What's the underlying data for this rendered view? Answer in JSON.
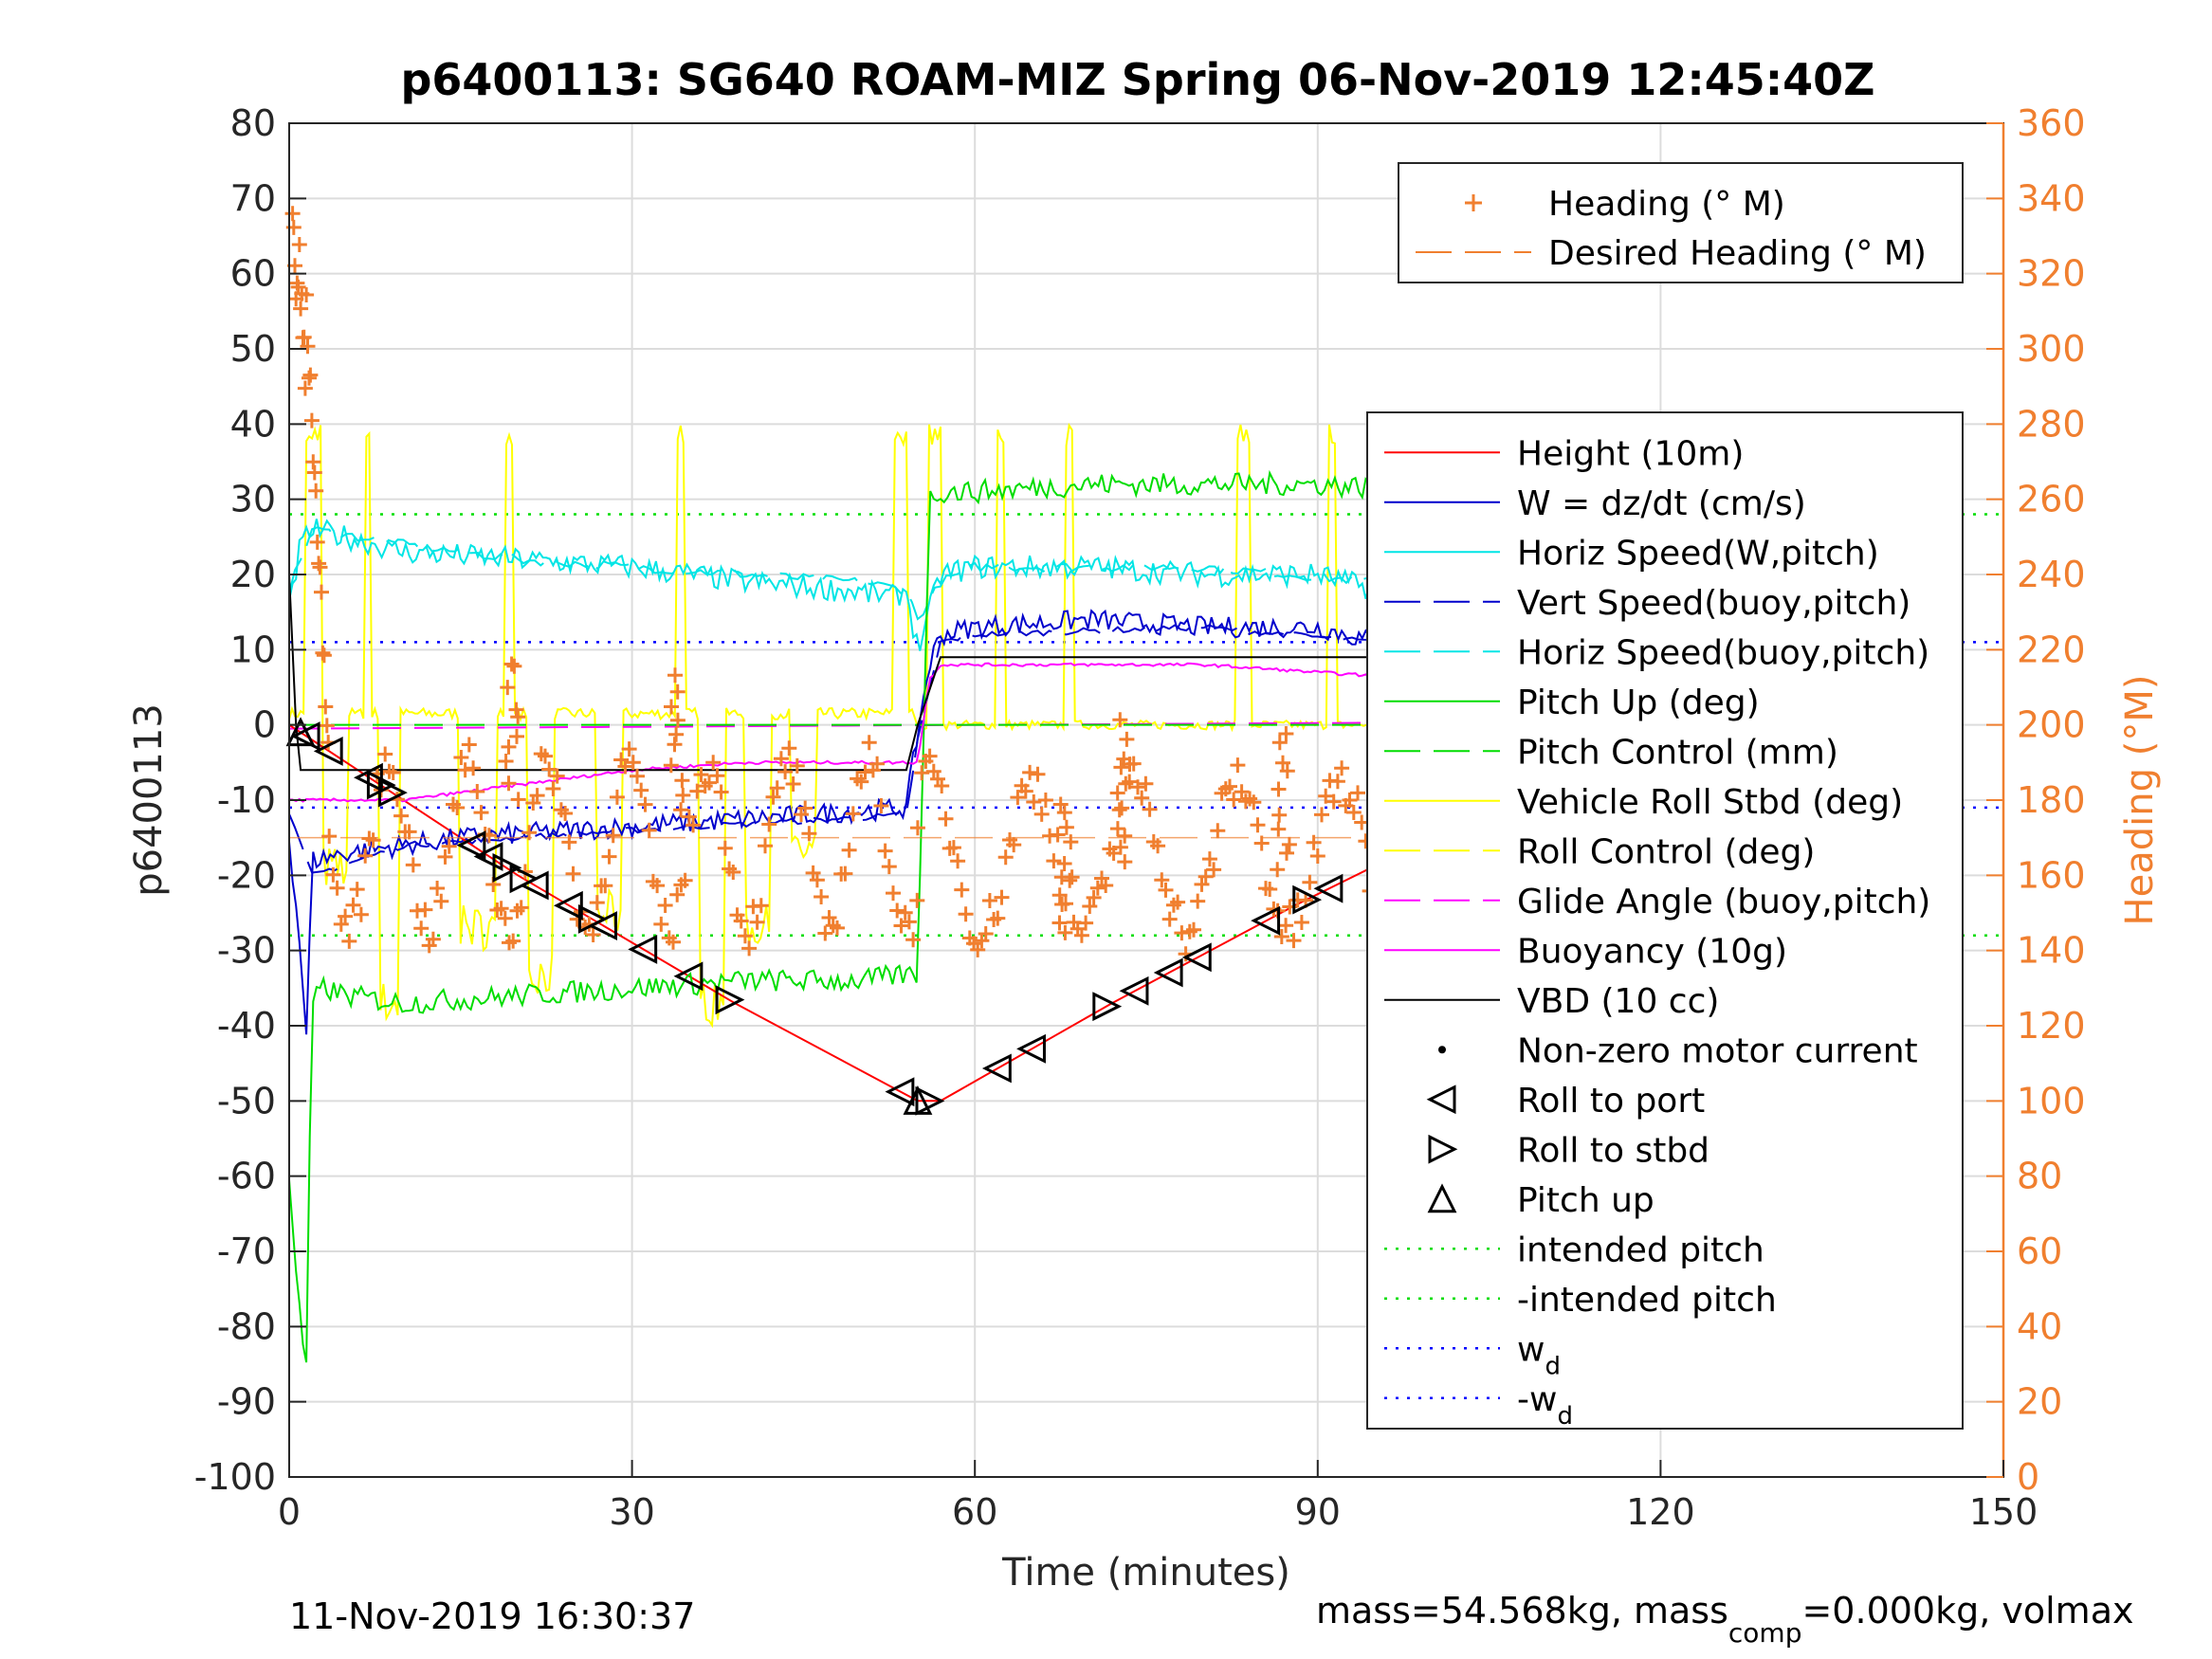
{
  "chart_data": {
    "type": "line",
    "title": "p6400113: SG640 ROAM-MIZ Spring 06-Nov-2019 12:45:40Z",
    "xlabel": "Time (minutes)",
    "ylabel": "p6400113",
    "y2label": "Heading (°M)",
    "xlim": [
      0,
      150
    ],
    "ylim": [
      -100,
      80
    ],
    "y2lim": [
      0,
      360
    ],
    "xticks": [
      0,
      30,
      60,
      90,
      120,
      150
    ],
    "yticks": [
      -100,
      -90,
      -80,
      -70,
      -60,
      -50,
      -40,
      -30,
      -20,
      -10,
      0,
      10,
      20,
      30,
      40,
      50,
      60,
      70,
      80
    ],
    "y2ticks": [
      0,
      20,
      40,
      60,
      80,
      100,
      120,
      140,
      160,
      180,
      200,
      220,
      240,
      260,
      280,
      300,
      320,
      340,
      360
    ],
    "grid": true,
    "footer_left": "11-Nov-2019 16:30:37",
    "footer_right_a": "mass=54.568kg, mass",
    "footer_right_sub": "comp",
    "footer_right_b": "=0.000kg, volmax",
    "legend_heading": [
      {
        "label": "Heading (° M)",
        "color": "#f07f2f",
        "style": "plus"
      },
      {
        "label": "Desired Heading (° M)",
        "color": "#f07f2f",
        "style": "dash"
      }
    ],
    "legend_main": [
      {
        "label": "Height (10m)",
        "color": "#ff0000",
        "style": "solid"
      },
      {
        "label": "W = dz/dt (cm/s)",
        "color": "#0000cc",
        "style": "solid"
      },
      {
        "label": "Horiz Speed(W,pitch)",
        "color": "#00e5e5",
        "style": "solid"
      },
      {
        "label": "Vert Speed(buoy,pitch)",
        "color": "#0000cc",
        "style": "dash"
      },
      {
        "label": "Horiz Speed(buoy,pitch)",
        "color": "#00e5e5",
        "style": "dash"
      },
      {
        "label": "Pitch Up (deg)",
        "color": "#00dd00",
        "style": "solid"
      },
      {
        "label": "Pitch Control (mm)",
        "color": "#00dd00",
        "style": "dash"
      },
      {
        "label": "Vehicle Roll Stbd (deg)",
        "color": "#ffff00",
        "style": "solid"
      },
      {
        "label": "Roll Control (deg)",
        "color": "#ffff00",
        "style": "dash"
      },
      {
        "label": "Glide Angle (buoy,pitch)",
        "color": "#ff00ff",
        "style": "dash"
      },
      {
        "label": "Buoyancy (10g)",
        "color": "#ff00ff",
        "style": "solid"
      },
      {
        "label": "VBD (10 cc)",
        "color": "#000000",
        "style": "solid"
      },
      {
        "label": "Non-zero motor current",
        "color": "#000000",
        "style": "dot"
      },
      {
        "label": "Roll to port",
        "color": "#000000",
        "style": "tri-left"
      },
      {
        "label": "Roll to stbd",
        "color": "#000000",
        "style": "tri-right"
      },
      {
        "label": "Pitch up",
        "color": "#000000",
        "style": "tri-up"
      },
      {
        "label": "intended pitch",
        "color": "#00dd00",
        "style": "dotted"
      },
      {
        "label": "-intended pitch",
        "color": "#00dd00",
        "style": "dotted"
      },
      {
        "label": "w",
        "sub": "d",
        "color": "#0000ff",
        "style": "dotted"
      },
      {
        "label": "-w",
        "sub": "d",
        "color": "#0000ff",
        "style": "dotted"
      }
    ],
    "reference_lines": [
      {
        "name": "intended pitch",
        "y": 28,
        "color": "#00dd00"
      },
      {
        "name": "-intended pitch",
        "y": -28,
        "color": "#00dd00"
      },
      {
        "name": "w_d",
        "y": 11,
        "color": "#0000ff"
      },
      {
        "name": "-w_d",
        "y": -11,
        "color": "#0000ff"
      }
    ],
    "series": [
      {
        "name": "Height (10m)",
        "color": "#ff0000",
        "x": [
          0,
          2,
          20,
          39,
          55,
          57,
          72,
          88,
          100,
          110,
          121
        ],
        "y": [
          0,
          -2,
          -20,
          -37,
          -50,
          -50,
          -37,
          -24,
          -15,
          -10,
          -1
        ]
      },
      {
        "name": "W = dz/dt (cm/s)",
        "color": "#0000cc",
        "x": [
          0,
          1,
          1.5,
          2,
          5,
          10,
          15,
          25,
          35,
          45,
          54,
          55,
          56,
          57,
          60,
          70,
          80,
          90,
          95,
          100,
          110,
          120,
          122
        ],
        "y": [
          -15,
          -30,
          -42,
          -18,
          -17,
          -16,
          -15,
          -14,
          -13,
          -12,
          -11,
          -1,
          8,
          12,
          13,
          14,
          13,
          13,
          11,
          10,
          11,
          11,
          12
        ]
      },
      {
        "name": "Horiz Speed(W,pitch)",
        "color": "#00e5e5",
        "x": [
          0,
          1,
          2,
          5,
          10,
          20,
          30,
          40,
          48,
          53,
          54,
          55,
          56,
          57,
          60,
          70,
          80,
          90,
          95,
          100,
          110,
          120,
          122
        ],
        "y": [
          15,
          24,
          26,
          25,
          23,
          22,
          21,
          19,
          18,
          17,
          18,
          10,
          15,
          20,
          21,
          21,
          20,
          20,
          18,
          17,
          17,
          17,
          18
        ]
      },
      {
        "name": "Pitch Up (deg)",
        "color": "#00dd00",
        "x": [
          0,
          1,
          1.5,
          2,
          3,
          5,
          10,
          20,
          30,
          40,
          50,
          55,
          56,
          57,
          60,
          70,
          80,
          90,
          100,
          110,
          120,
          122
        ],
        "y": [
          -60,
          -80,
          -85,
          -37,
          -35,
          -36,
          -37,
          -36,
          -35,
          -34,
          -34,
          -33,
          30,
          31,
          31,
          32,
          32,
          32,
          31,
          30,
          31,
          32
        ]
      },
      {
        "name": "Buoyancy (10g)",
        "color": "#ff00ff",
        "x": [
          0,
          1,
          2,
          10,
          20,
          30,
          40,
          50,
          55,
          56,
          57,
          60,
          70,
          80,
          90,
          100,
          110,
          120,
          122
        ],
        "y": [
          -10,
          -10,
          -10,
          -10,
          -8,
          -6,
          -5,
          -5,
          -5,
          6,
          8,
          8,
          8,
          8,
          7,
          6,
          6,
          7,
          7
        ]
      },
      {
        "name": "VBD (10 cc)",
        "color": "#000000",
        "x": [
          0,
          0.6,
          1,
          40,
          54,
          55,
          57,
          60,
          100,
          105,
          110,
          122
        ],
        "y": [
          20,
          0,
          -6,
          -6,
          -6,
          0,
          9,
          9,
          9,
          9.5,
          10,
          10
        ]
      }
    ]
  }
}
